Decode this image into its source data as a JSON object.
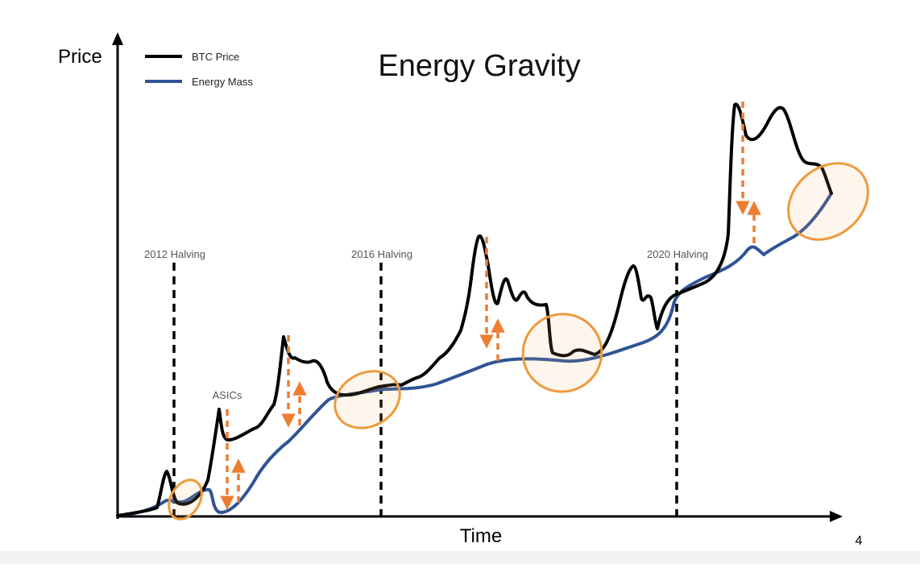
{
  "title": "Energy Gravity",
  "page_number": "4",
  "axes": {
    "y_label": "Price",
    "x_label": "Time"
  },
  "legend": [
    {
      "label": "BTC Price",
      "color": "#000000"
    },
    {
      "label": "Energy Mass",
      "color": "#2f5496"
    }
  ],
  "events": [
    {
      "label": "2012 Halving"
    },
    {
      "label": "2016 Halving"
    },
    {
      "label": "2020 Halving"
    },
    {
      "label": "ASICs"
    }
  ],
  "colors": {
    "accent": "#ed7d31",
    "ellipse_fill": "#f6b26b"
  }
}
